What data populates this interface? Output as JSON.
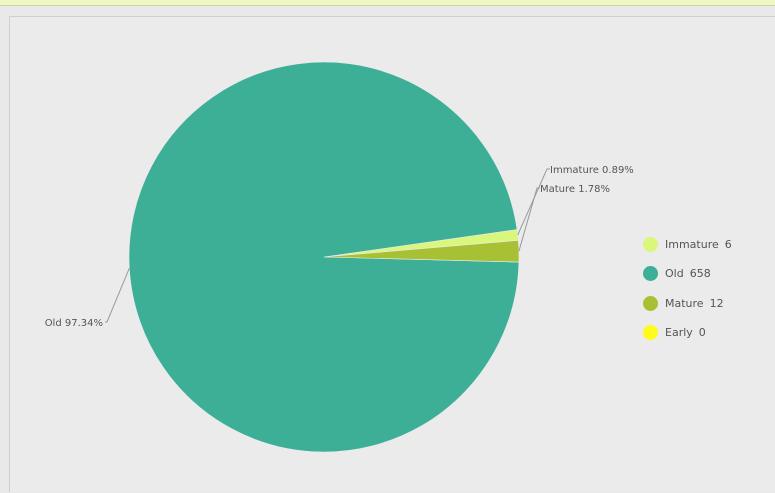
{
  "chart_data": {
    "type": "pie",
    "slices": [
      {
        "name": "Immature",
        "value": 6,
        "percent_label": "Immature 0.89%",
        "color": "#d9f77a"
      },
      {
        "name": "Old",
        "value": 658,
        "percent_label": "Old 97.34%",
        "color": "#3daf97"
      },
      {
        "name": "Mature",
        "value": 12,
        "percent_label": "Mature 1.78%",
        "color": "#a8c134"
      },
      {
        "name": "Early",
        "value": 0,
        "percent_label": "",
        "color": "#fffb1a"
      }
    ],
    "legend_position": "right"
  }
}
